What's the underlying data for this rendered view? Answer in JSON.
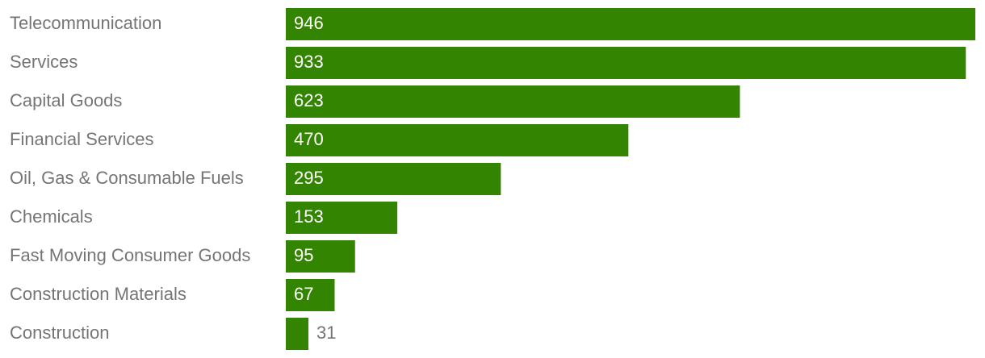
{
  "chart_data": {
    "type": "bar",
    "orientation": "horizontal",
    "categories": [
      "Telecommunication",
      "Services",
      "Capital Goods",
      "Financial Services",
      "Oil, Gas & Consumable Fuels",
      "Chemicals",
      "Fast Moving Consumer Goods",
      "Construction Materials",
      "Construction"
    ],
    "values": [
      946,
      933,
      623,
      470,
      295,
      153,
      95,
      67,
      31
    ],
    "color": "#338400"
  }
}
